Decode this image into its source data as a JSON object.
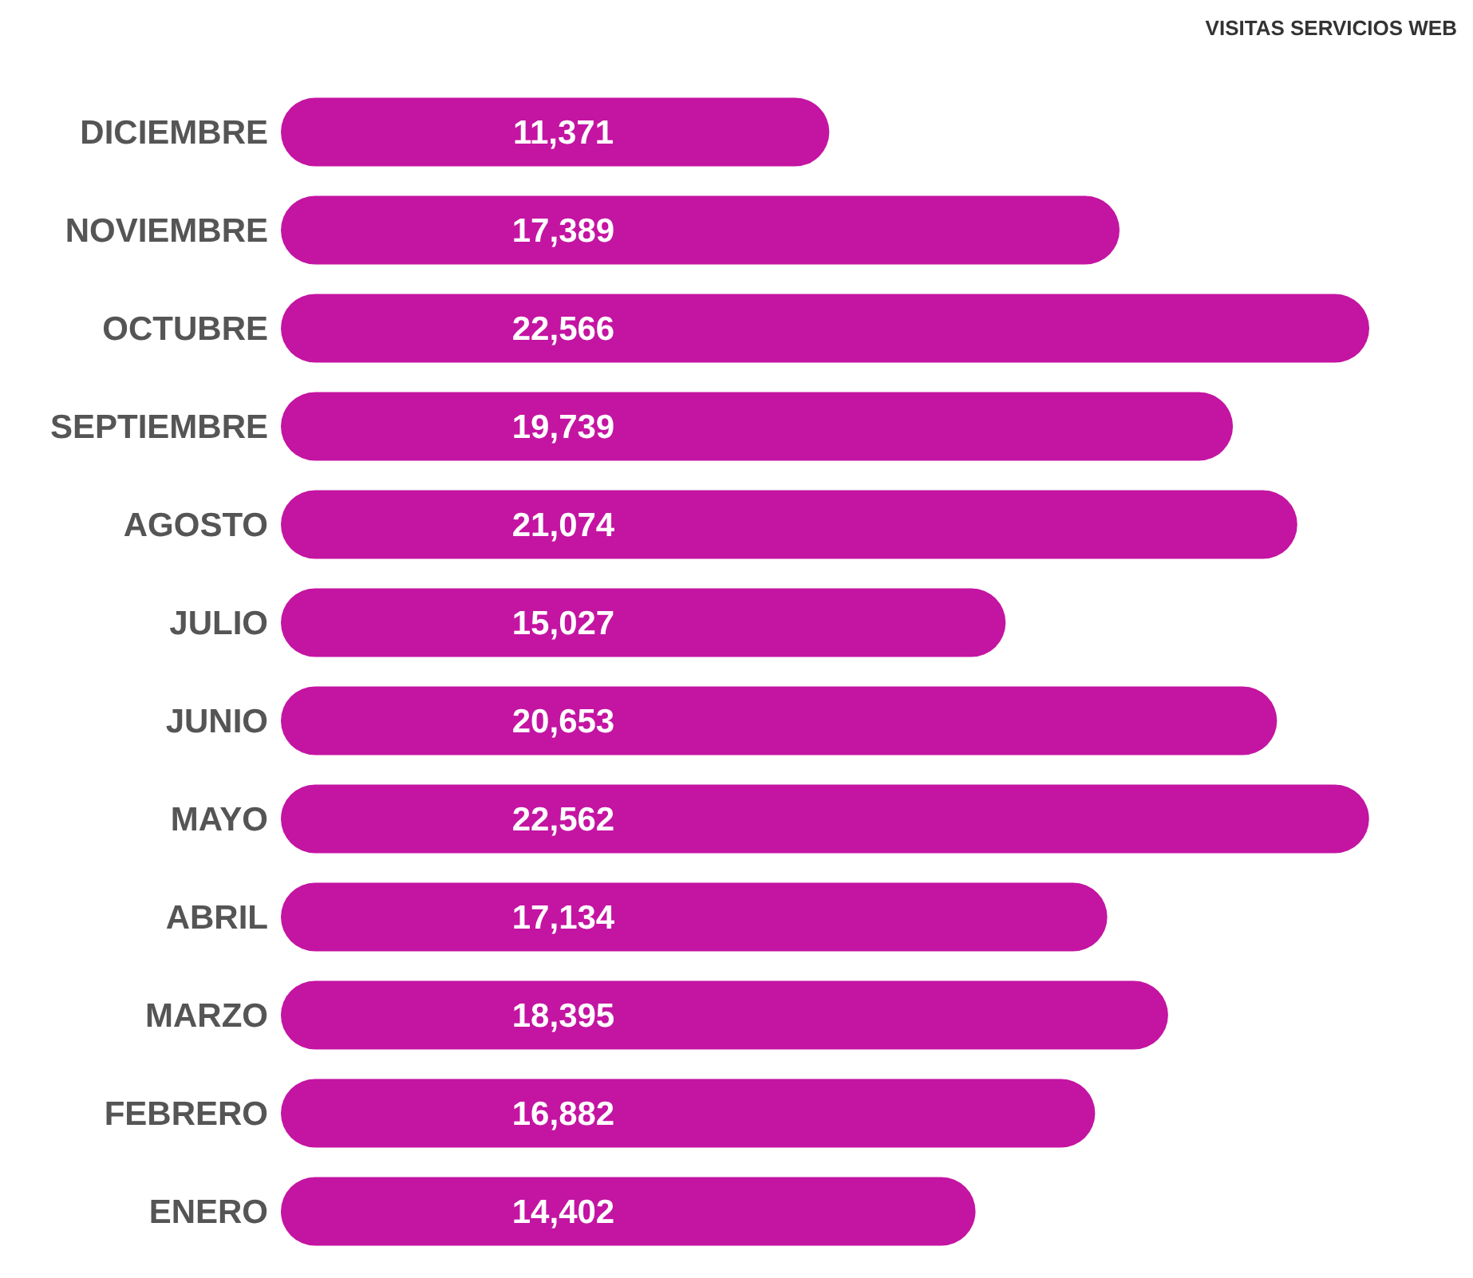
{
  "chart_data": {
    "type": "bar",
    "orientation": "horizontal",
    "title": "VISITAS SERVICIOS WEB",
    "categories": [
      "DICIEMBRE",
      "NOVIEMBRE",
      "OCTUBRE",
      "SEPTIEMBRE",
      "AGOSTO",
      "JULIO",
      "JUNIO",
      "MAYO",
      "ABRIL",
      "MARZO",
      "FEBRERO",
      "ENERO"
    ],
    "values": [
      11371,
      17389,
      22566,
      19739,
      21074,
      15027,
      20653,
      22562,
      17134,
      18395,
      16882,
      14402
    ],
    "value_labels": [
      "11,371",
      "17,389",
      "22,566",
      "19,739",
      "21,074",
      "15,027",
      "20,653",
      "22,562",
      "17,134",
      "18,395",
      "16,882",
      "14,402"
    ],
    "color": "#c414a2"
  }
}
